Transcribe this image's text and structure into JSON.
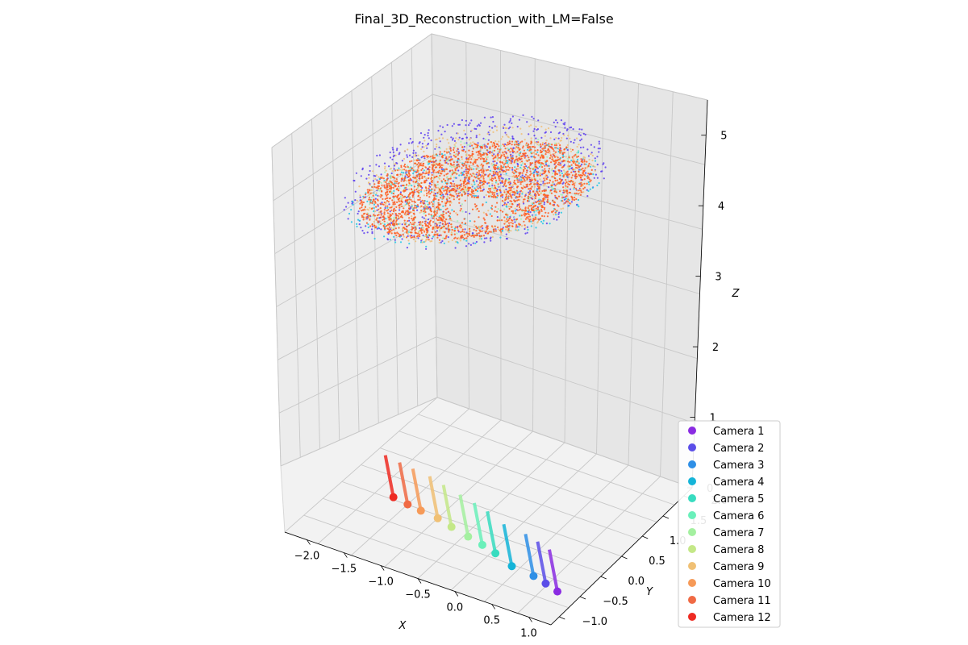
{
  "chart_data": {
    "type": "scatter",
    "title": "Final_3D_Reconstruction_with_LM=False",
    "projection": "3d",
    "xlabel": "X",
    "ylabel": "Y",
    "zlabel": "Z",
    "x_ticks": [
      "−2.0",
      "−1.5",
      "−1.0",
      "−0.5",
      "0.0",
      "0.5",
      "1.0"
    ],
    "y_ticks": [
      "−1.0",
      "−0.5",
      "0.0",
      "0.5",
      "1.0",
      "1.5",
      "2.0"
    ],
    "z_ticks": [
      "0",
      "1",
      "2",
      "3",
      "4",
      "5"
    ],
    "xlim": [
      -2.3,
      1.3
    ],
    "ylim": [
      -1.2,
      2.2
    ],
    "zlim": [
      0,
      5.5
    ],
    "grid": true,
    "legend_position": "lower-right",
    "point_cloud": {
      "description_colors": [
        "#5a3cf0",
        "#1ec8e6",
        "#a0f0b4",
        "#f0be78",
        "#ff5a1e"
      ],
      "dominant_color": "#ff4a1a",
      "approx_z_range": [
        3.7,
        4.9
      ]
    },
    "cameras": [
      {
        "name": "Camera 1",
        "color": "#8a2be2",
        "x": 1.02,
        "y": -0.55,
        "z": 0.0
      },
      {
        "name": "Camera 2",
        "color": "#5b4ee8",
        "x": 0.82,
        "y": -0.48,
        "z": 0.0
      },
      {
        "name": "Camera 3",
        "color": "#2e8fe6",
        "x": 0.62,
        "y": -0.42,
        "z": 0.0
      },
      {
        "name": "Camera 4",
        "color": "#14b4d8",
        "x": 0.3,
        "y": -0.38,
        "z": 0.0
      },
      {
        "name": "Camera 5",
        "color": "#38dcc0",
        "x": 0.0,
        "y": -0.25,
        "z": 0.0
      },
      {
        "name": "Camera 6",
        "color": "#6af0ba",
        "x": -0.22,
        "y": -0.18,
        "z": 0.0
      },
      {
        "name": "Camera 7",
        "color": "#a4f0a0",
        "x": -0.45,
        "y": -0.12,
        "z": 0.0
      },
      {
        "name": "Camera 8",
        "color": "#c4e888",
        "x": -0.72,
        "y": -0.05,
        "z": 0.0
      },
      {
        "name": "Camera 9",
        "color": "#f0c074",
        "x": -0.95,
        "y": 0.02,
        "z": 0.0
      },
      {
        "name": "Camera 10",
        "color": "#f69a58",
        "x": -1.2,
        "y": 0.05,
        "z": 0.0
      },
      {
        "name": "Camera 11",
        "color": "#f06a44",
        "x": -1.4,
        "y": 0.08,
        "z": 0.0
      },
      {
        "name": "Camera 12",
        "color": "#ee2a22",
        "x": -1.62,
        "y": 0.12,
        "z": 0.0
      }
    ]
  }
}
